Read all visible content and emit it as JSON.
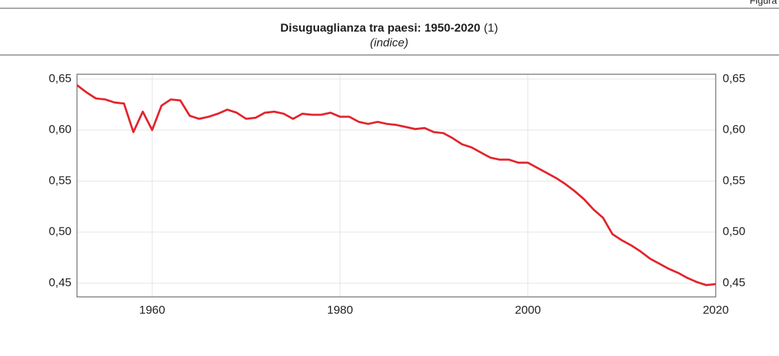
{
  "chart_data": {
    "type": "line",
    "figure_label": "Figura",
    "title": "Disuguaglianza tra paesi: 1950-2020",
    "title_note": "(1)",
    "subtitle": "(indice)",
    "x": [
      1952,
      1953,
      1954,
      1955,
      1956,
      1957,
      1958,
      1959,
      1960,
      1961,
      1962,
      1963,
      1964,
      1965,
      1966,
      1967,
      1968,
      1969,
      1970,
      1971,
      1972,
      1973,
      1974,
      1975,
      1976,
      1977,
      1978,
      1979,
      1980,
      1981,
      1982,
      1983,
      1984,
      1985,
      1986,
      1987,
      1988,
      1989,
      1990,
      1991,
      1992,
      1993,
      1994,
      1995,
      1996,
      1997,
      1998,
      1999,
      2000,
      2001,
      2002,
      2003,
      2004,
      2005,
      2006,
      2007,
      2008,
      2009,
      2010,
      2011,
      2012,
      2013,
      2014,
      2015,
      2016,
      2017,
      2018,
      2019,
      2020
    ],
    "series": [
      {
        "color": "#e3252d",
        "values": [
          0.644,
          0.637,
          0.631,
          0.63,
          0.627,
          0.626,
          0.598,
          0.618,
          0.6,
          0.624,
          0.63,
          0.629,
          0.614,
          0.611,
          0.613,
          0.616,
          0.62,
          0.617,
          0.611,
          0.612,
          0.617,
          0.618,
          0.616,
          0.611,
          0.616,
          0.615,
          0.615,
          0.617,
          0.613,
          0.613,
          0.608,
          0.606,
          0.608,
          0.606,
          0.605,
          0.603,
          0.601,
          0.602,
          0.598,
          0.597,
          0.592,
          0.586,
          0.583,
          0.578,
          0.573,
          0.571,
          0.571,
          0.568,
          0.568,
          0.563,
          0.558,
          0.553,
          0.547,
          0.54,
          0.532,
          0.522,
          0.514,
          0.498,
          0.492,
          0.487,
          0.481,
          0.474,
          0.469,
          0.464,
          0.46,
          0.455,
          0.451,
          0.448,
          0.449
        ]
      }
    ],
    "xlim": [
      1952,
      2020
    ],
    "xticks": [
      1960,
      1980,
      2000,
      2020
    ],
    "ylim": [
      0.4365,
      0.6547
    ],
    "yticks": [
      {
        "value": 0.45,
        "label": "0,45"
      },
      {
        "value": 0.5,
        "label": "0,50"
      },
      {
        "value": 0.55,
        "label": "0,55"
      },
      {
        "value": 0.6,
        "label": "0,60"
      },
      {
        "value": 0.65,
        "label": "0,65"
      }
    ],
    "grid": true
  }
}
